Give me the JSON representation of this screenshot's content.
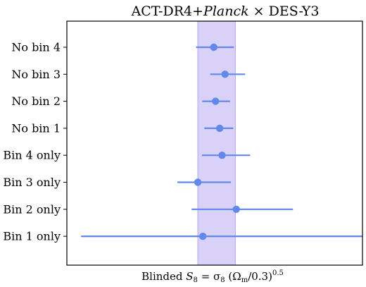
{
  "chart_data": {
    "type": "scatter",
    "title_parts": {
      "pre": "ACT-DR4+",
      "italic": "Planck",
      "post": " × DES-Y3"
    },
    "xlabel_parts": {
      "pre": "Blinded ",
      "s": "S",
      "s_sub": "8",
      "eq": " = σ",
      "sigma_sub": "8",
      "paren_open": " (Ω",
      "omega_sub": "m",
      "paren_close": "/0.3)",
      "sup": "0.5"
    },
    "xlim": [
      0,
      1
    ],
    "band": [
      0.443,
      0.57
    ],
    "band_color": "#d9d1f7",
    "band_edge_color": "#b4a6ef",
    "point_color": "#6288ea",
    "categories": [
      "No bin 4",
      "No bin 3",
      "No bin 2",
      "No bin 1",
      "Bin 4 only",
      "Bin 3 only",
      "Bin 2 only",
      "Bin 1 only"
    ],
    "points": [
      {
        "label": "No bin 4",
        "x": 0.497,
        "lo": 0.437,
        "hi": 0.565
      },
      {
        "label": "No bin 3",
        "x": 0.535,
        "lo": 0.485,
        "hi": 0.603
      },
      {
        "label": "No bin 2",
        "x": 0.503,
        "lo": 0.458,
        "hi": 0.552
      },
      {
        "label": "No bin 1",
        "x": 0.517,
        "lo": 0.465,
        "hi": 0.563
      },
      {
        "label": "Bin 4 only",
        "x": 0.525,
        "lo": 0.457,
        "hi": 0.62
      },
      {
        "label": "Bin 3 only",
        "x": 0.443,
        "lo": 0.374,
        "hi": 0.555
      },
      {
        "label": "Bin 2 only",
        "x": 0.573,
        "lo": 0.422,
        "hi": 0.765
      },
      {
        "label": "Bin 1 only",
        "x": 0.46,
        "lo": 0.048,
        "hi": 1.065
      }
    ]
  }
}
